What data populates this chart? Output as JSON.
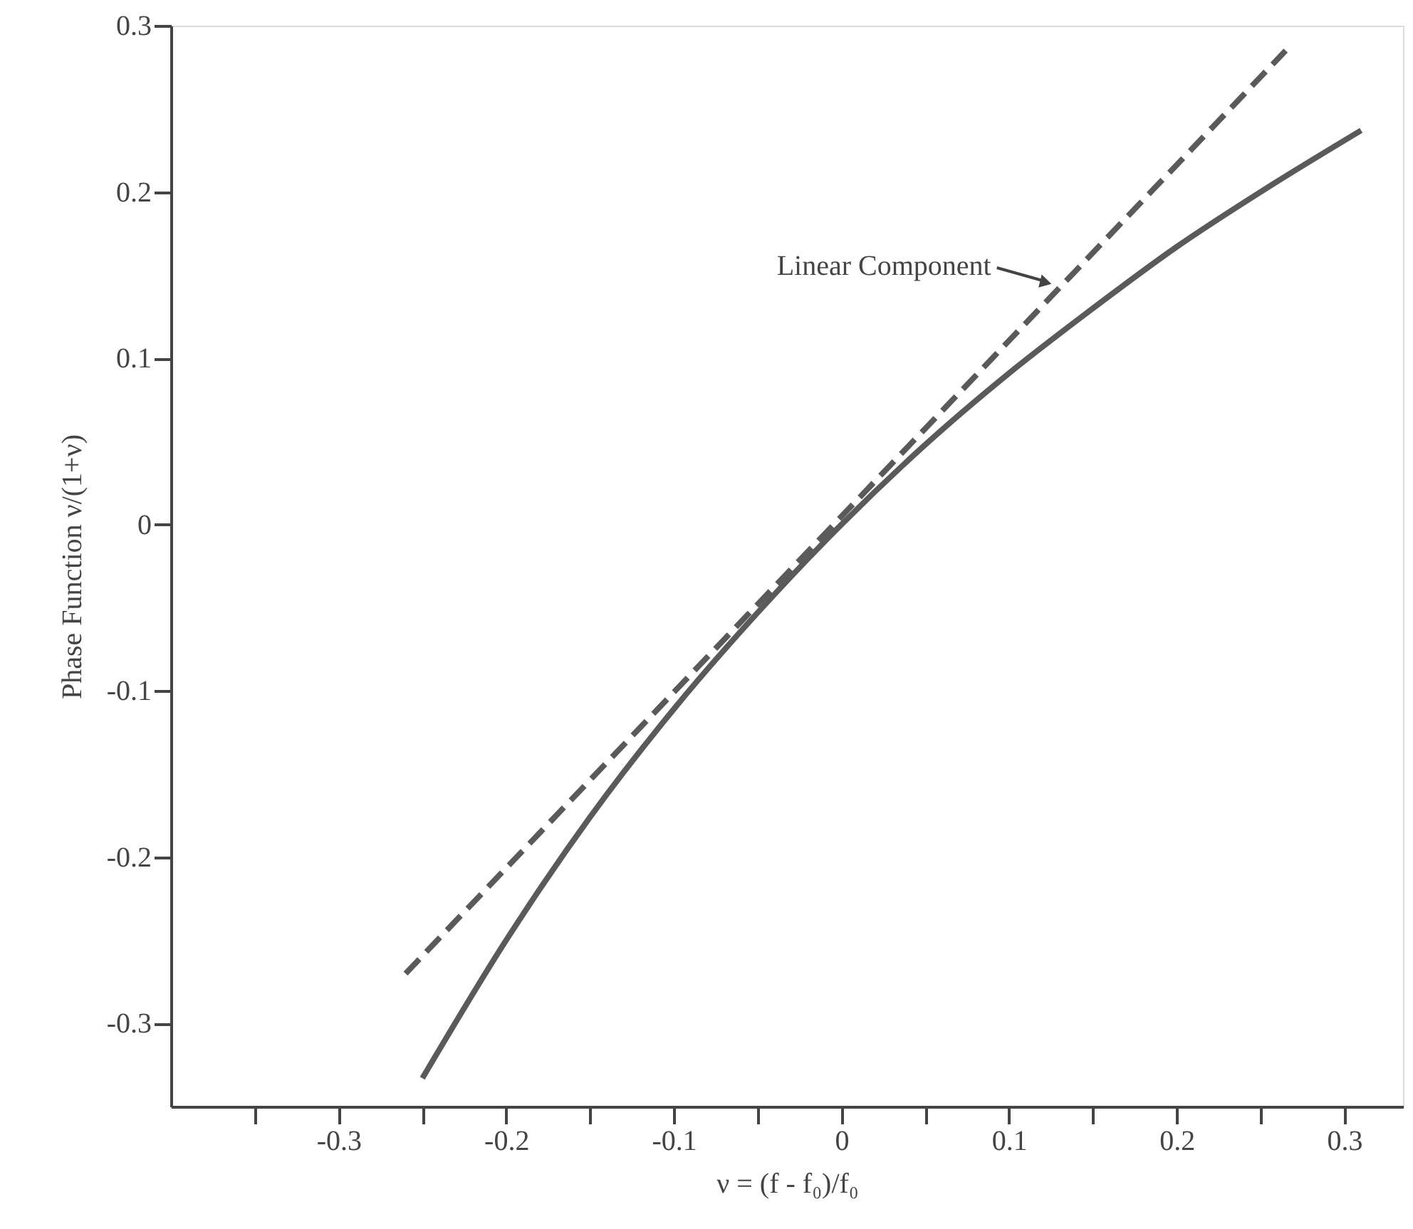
{
  "chart_data": {
    "type": "line",
    "xlabel": "ν = (f - f₀)/f₀",
    "ylabel": "Phase Function ν/(1+ν)",
    "xlim": [
      -0.4,
      0.335
    ],
    "ylim": [
      -0.35,
      0.3
    ],
    "xticks": [
      {
        "value": -0.35,
        "label": null
      },
      -0.3,
      {
        "value": -0.25,
        "label": null
      },
      -0.2,
      {
        "value": -0.15,
        "label": null
      },
      -0.1,
      {
        "value": -0.05,
        "label": null
      },
      0,
      {
        "value": 0.05,
        "label": null
      },
      0.1,
      {
        "value": 0.15,
        "label": null
      },
      0.2,
      {
        "value": 0.25,
        "label": null
      },
      0.3
    ],
    "yticks": [
      -0.3,
      -0.2,
      -0.1,
      0,
      0.1,
      0.2,
      0.3
    ],
    "grid": false,
    "series": [
      {
        "color": "#5a5a5a",
        "line_style": "solid",
        "x": [
          -0.25,
          -0.2,
          -0.15,
          -0.1,
          -0.05,
          0,
          0.05,
          0.1,
          0.15,
          0.2,
          0.25,
          0.31
        ],
        "values": [
          -0.333,
          -0.25,
          -0.176,
          -0.111,
          -0.053,
          0,
          0.048,
          0.091,
          0.13,
          0.167,
          0.2,
          0.237
        ]
      },
      {
        "color": "#5a5a5a",
        "line_style": "dashed",
        "x": [
          -0.26,
          0.265
        ],
        "values": [
          -0.27,
          0.285
        ]
      }
    ],
    "annotations": [
      {
        "text": "Linear Component",
        "x": 0.125,
        "y": 0.145
      }
    ]
  }
}
